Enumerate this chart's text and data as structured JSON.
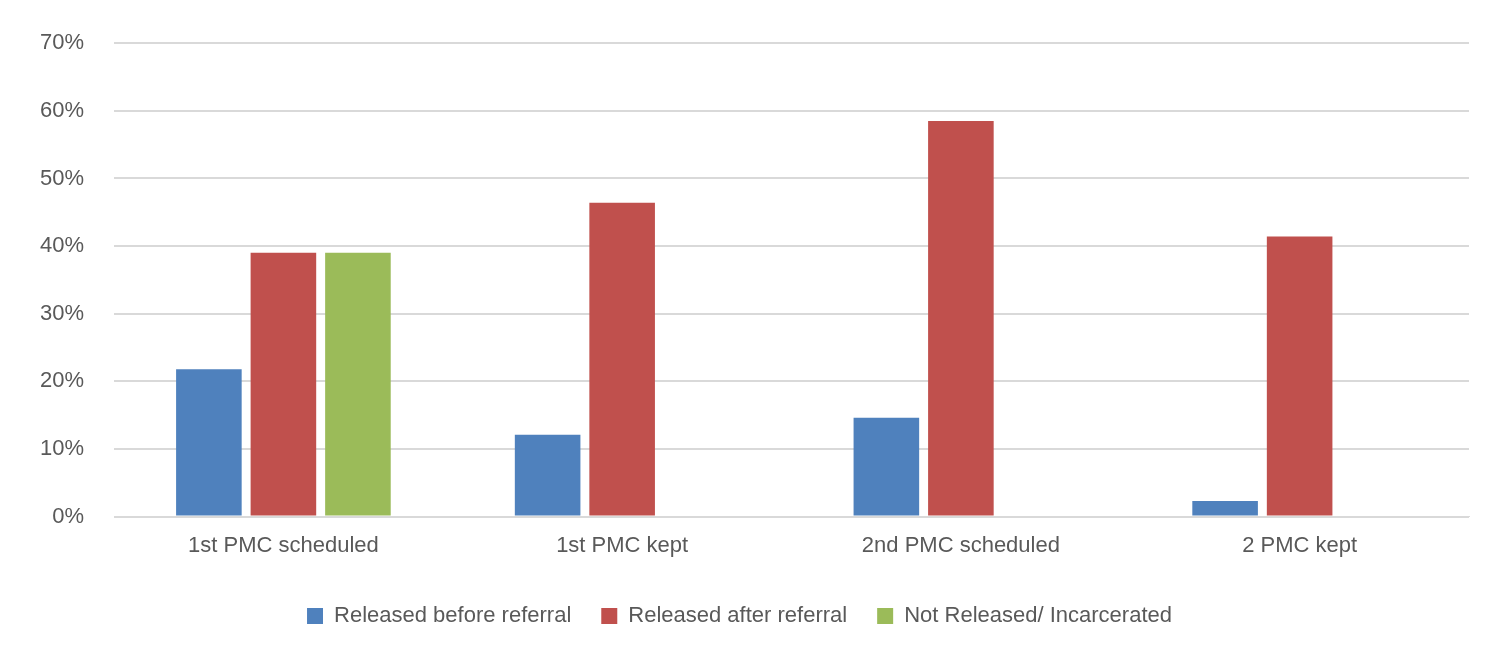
{
  "chart_data": {
    "type": "bar",
    "categories": [
      "1st PMC scheduled",
      "1st PMC kept",
      "2nd PMC scheduled",
      "2 PMC kept"
    ],
    "series": [
      {
        "name": "Released before referral",
        "color": "#4f81bd",
        "values": [
          21.8,
          12.1,
          14.6,
          2.3
        ]
      },
      {
        "name": "Released after referral",
        "color": "#c0504d",
        "values": [
          39,
          46.4,
          58.5,
          41.4
        ]
      },
      {
        "name": "Not Released/ Incarcerated",
        "color": "#9bbb59",
        "values": [
          39,
          null,
          null,
          null
        ]
      }
    ],
    "ylim": [
      0,
      70
    ],
    "yticks": [
      {
        "value": 0,
        "label": "0%"
      },
      {
        "value": 10,
        "label": "10%"
      },
      {
        "value": 20,
        "label": "20%"
      },
      {
        "value": 30,
        "label": "30%"
      },
      {
        "value": 40,
        "label": "40%"
      },
      {
        "value": 50,
        "label": "50%"
      },
      {
        "value": 60,
        "label": "60%"
      },
      {
        "value": 70,
        "label": "70%"
      }
    ],
    "grid": "y",
    "legend": "bottom"
  }
}
